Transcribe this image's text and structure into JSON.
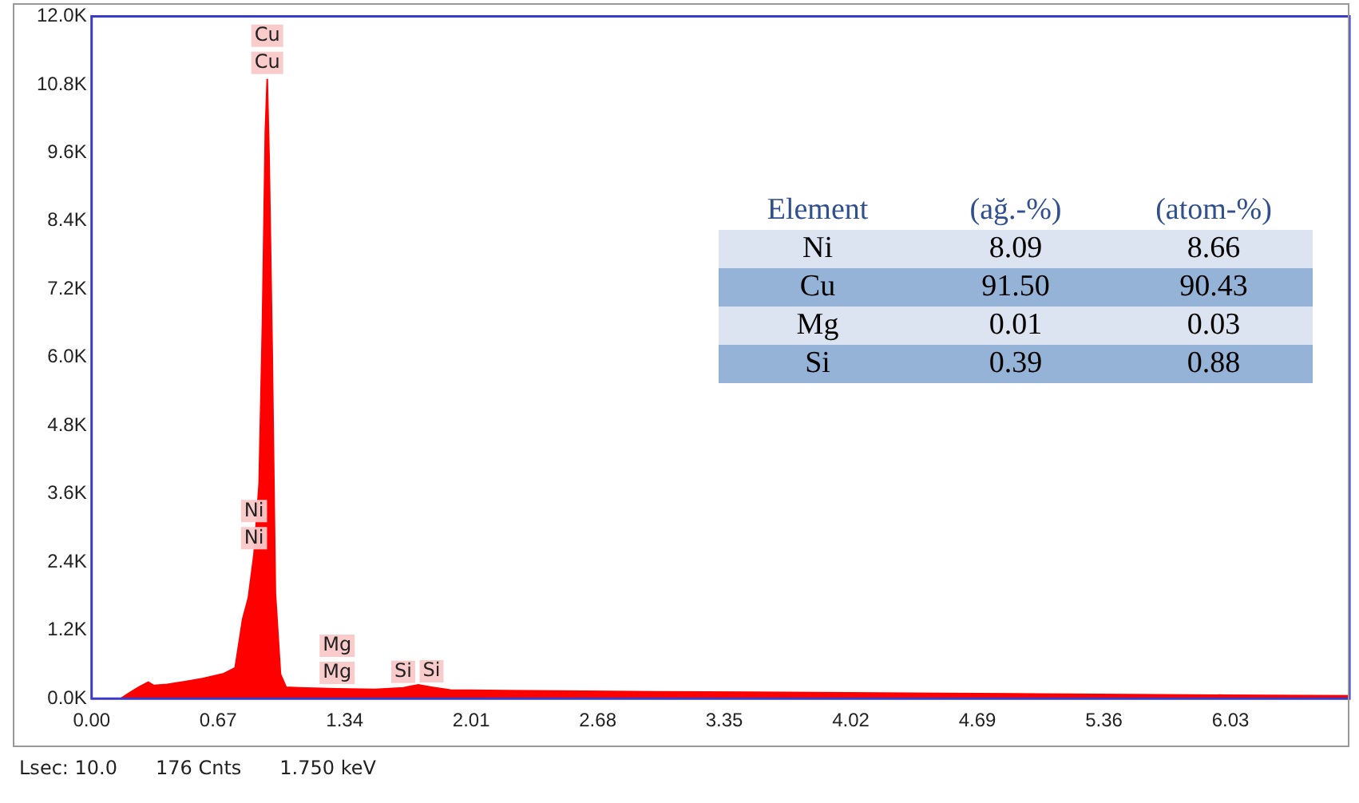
{
  "chart_data": [
    {
      "type": "area",
      "x": [
        0.155,
        0.2,
        0.25,
        0.3,
        0.33,
        0.4,
        0.5,
        0.6,
        0.7,
        0.76,
        0.8,
        0.83,
        0.86,
        0.887,
        0.905,
        0.92,
        0.93,
        0.94,
        0.956,
        0.973,
        1.0,
        1.03,
        1.1,
        1.3,
        1.5,
        1.65,
        1.73,
        1.8,
        1.9,
        2.2,
        2.6,
        3.0,
        3.5,
        4.0,
        4.5,
        5.0,
        5.5,
        6.0,
        6.66
      ],
      "series": [
        {
          "color": "#ff0000",
          "values": [
            0,
            100,
            200,
            290,
            230,
            250,
            300,
            360,
            440,
            540,
            1400,
            1770,
            2540,
            3770,
            6630,
            9970,
            10900,
            9490,
            6140,
            1860,
            430,
            200,
            190,
            170,
            160,
            190,
            240,
            200,
            150,
            140,
            130,
            120,
            110,
            100,
            90,
            80,
            70,
            60,
            50
          ]
        }
      ],
      "xlim": [
        0,
        6.66
      ],
      "xticks": [
        {
          "value": 0,
          "label": "0.00"
        },
        0.67,
        1.34,
        2.01,
        2.68,
        3.35,
        4.02,
        4.69,
        5.36,
        6.03
      ],
      "ylim": [
        0,
        12000
      ],
      "yticks": [
        {
          "value": 0,
          "label": "0.0K"
        },
        {
          "value": 1200,
          "label": "1.2K"
        },
        {
          "value": 2400,
          "label": "2.4K"
        },
        {
          "value": 3600,
          "label": "3.6K"
        },
        {
          "value": 4800,
          "label": "4.8K"
        },
        {
          "value": 6000,
          "label": "6.0K"
        },
        {
          "value": 7200,
          "label": "7.2K"
        },
        {
          "value": 8400,
          "label": "8.4K"
        },
        {
          "value": 9600,
          "label": "9.6K"
        },
        {
          "value": 10800,
          "label": "10.8K"
        },
        {
          "value": 12000,
          "label": "12.0K"
        }
      ],
      "grid": false,
      "legend": false,
      "annotations": [
        {
          "text": "Cu",
          "x": 0.93,
          "y": 10900
        },
        {
          "text": "Cu",
          "x": 0.93,
          "y": 10900
        },
        {
          "text": "Ni",
          "x": 0.86,
          "y": 2540
        },
        {
          "text": "Ni",
          "x": 0.86,
          "y": 2540
        },
        {
          "text": "Mg",
          "x": 1.3,
          "y": 170
        },
        {
          "text": "Mg",
          "x": 1.3,
          "y": 170
        },
        {
          "text": "Si",
          "x": 1.65,
          "y": 190
        },
        {
          "text": "Si",
          "x": 1.8,
          "y": 200
        },
        "Lsec: 10.0",
        "176 Cnts",
        "1.750 keV"
      ]
    },
    {
      "type": "other",
      "xlabel": "Element",
      "categories": [
        "Ni",
        "Cu",
        "Mg",
        "Si"
      ],
      "series": [
        {
          "name": "(ağ.-%)",
          "values": [
            8.09,
            91.5,
            0.01,
            0.39
          ],
          "value_labels": [
            "8.09",
            "91.50",
            "0.01",
            "0.39"
          ],
          "colors": [
            "#dbe4f0",
            "#95b3d7",
            "#dbe4f0",
            "#95b3d7"
          ]
        },
        {
          "name": "(atom-%)",
          "values": [
            8.66,
            90.43,
            0.03,
            0.88
          ],
          "value_labels": [
            "8.66",
            "90.43",
            "0.03",
            "0.88"
          ],
          "colors": [
            "#dbe4f0",
            "#95b3d7",
            "#dbe4f0",
            "#95b3d7"
          ]
        }
      ]
    }
  ]
}
